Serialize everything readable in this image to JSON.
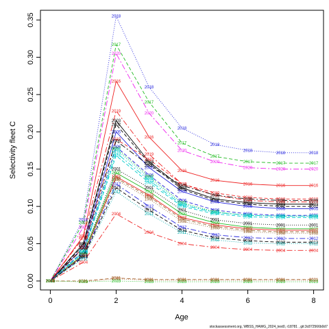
{
  "chart_data": {
    "type": "line",
    "xlabel": "Age",
    "ylabel": "Selectivity fleet C",
    "x": [
      0,
      1,
      2,
      3,
      4,
      5,
      6,
      7,
      8
    ],
    "xlim": [
      -0.3,
      8.3
    ],
    "ylim": [
      -0.012,
      0.363
    ],
    "xticks": [
      0,
      2,
      4,
      6,
      8
    ],
    "yticks": [
      0.0,
      0.05,
      0.1,
      0.15,
      0.2,
      0.25,
      0.3,
      0.35
    ],
    "ytick_labels": [
      "0.00",
      "0.05",
      "0.10",
      "0.15",
      "0.20",
      "0.25",
      "0.30",
      "0.35"
    ],
    "grid": false,
    "legend": "none",
    "series": [
      {
        "name": "2018",
        "color": "#2222dd",
        "dash": "1,2",
        "values": [
          0,
          0.082,
          0.355,
          0.26,
          0.205,
          0.183,
          0.175,
          0.172,
          0.172
        ]
      },
      {
        "name": "2017",
        "color": "#22bb22",
        "dash": "5,3",
        "values": [
          0,
          0.078,
          0.317,
          0.24,
          0.185,
          0.167,
          0.16,
          0.158,
          0.158
        ]
      },
      {
        "name": "2020",
        "color": "#ee22ee",
        "dash": "8,3,2,3",
        "values": [
          0,
          0.072,
          0.305,
          0.225,
          0.175,
          0.16,
          0.152,
          0.15,
          0.15
        ]
      },
      {
        "name": "2016",
        "color": "#ee2222",
        "dash": "",
        "values": [
          0,
          0.06,
          0.268,
          0.193,
          0.148,
          0.135,
          0.13,
          0.128,
          0.128
        ]
      },
      {
        "name": "2019",
        "color": "#ee2222",
        "dash": "8,3,2,3",
        "values": [
          0,
          0.058,
          0.228,
          0.17,
          0.13,
          0.115,
          0.108,
          0.106,
          0.106
        ]
      },
      {
        "name": "2003",
        "color": "#000000",
        "dash": "",
        "values": [
          0,
          0.05,
          0.215,
          0.16,
          0.125,
          0.11,
          0.105,
          0.103,
          0.103
        ]
      },
      {
        "name": "2002",
        "color": "#000000",
        "dash": "5,3",
        "values": [
          0,
          0.048,
          0.21,
          0.158,
          0.123,
          0.108,
          0.103,
          0.1,
          0.1
        ]
      },
      {
        "name": "2005",
        "color": "#2222dd",
        "dash": "",
        "values": [
          0,
          0.045,
          0.2,
          0.152,
          0.12,
          0.106,
          0.1,
          0.097,
          0.097
        ]
      },
      {
        "name": "2010",
        "color": "#ee2222",
        "dash": "5,3",
        "values": [
          0,
          0.045,
          0.19,
          0.163,
          0.13,
          0.118,
          0.112,
          0.11,
          0.11
        ]
      },
      {
        "name": "2009",
        "color": "#000000",
        "dash": "8,3,2,3",
        "values": [
          0,
          0.044,
          0.188,
          0.155,
          0.128,
          0.115,
          0.11,
          0.108,
          0.108
        ]
      },
      {
        "name": "2006",
        "color": "#2222dd",
        "dash": "5,3",
        "values": [
          0,
          0.04,
          0.18,
          0.142,
          0.108,
          0.095,
          0.09,
          0.088,
          0.088
        ]
      },
      {
        "name": "2007",
        "color": "#22bb22",
        "dash": "1,2",
        "values": [
          0,
          0.04,
          0.178,
          0.14,
          0.105,
          0.093,
          0.088,
          0.087,
          0.087
        ]
      },
      {
        "name": "2008",
        "color": "#00cccc",
        "dash": "1,2",
        "values": [
          0,
          0.04,
          0.176,
          0.138,
          0.104,
          0.092,
          0.088,
          0.087,
          0.087
        ]
      },
      {
        "name": "2015",
        "color": "#00cccc",
        "dash": "8,3,2,3",
        "values": [
          0,
          0.038,
          0.172,
          0.135,
          0.102,
          0.092,
          0.088,
          0.087,
          0.087
        ]
      },
      {
        "name": "2014",
        "color": "#00cccc",
        "dash": "5,3",
        "values": [
          0,
          0.038,
          0.168,
          0.132,
          0.1,
          0.09,
          0.086,
          0.085,
          0.085
        ]
      },
      {
        "name": "2001",
        "color": "#000000",
        "dash": "1,2",
        "values": [
          0,
          0.036,
          0.15,
          0.125,
          0.095,
          0.082,
          0.077,
          0.075,
          0.075
        ]
      },
      {
        "name": "2000",
        "color": "#22bb22",
        "dash": "",
        "values": [
          0,
          0.035,
          0.145,
          0.12,
          0.09,
          0.078,
          0.072,
          0.07,
          0.07
        ]
      },
      {
        "name": "1997",
        "color": "#ee2222",
        "dash": "",
        "values": [
          0,
          0.034,
          0.14,
          0.115,
          0.085,
          0.075,
          0.07,
          0.068,
          0.068
        ]
      },
      {
        "name": "1999",
        "color": "#996633",
        "dash": "5,3",
        "values": [
          0,
          0.034,
          0.138,
          0.113,
          0.083,
          0.073,
          0.068,
          0.066,
          0.066
        ]
      },
      {
        "name": "1998",
        "color": "#996633",
        "dash": "1,2",
        "values": [
          0,
          0.033,
          0.136,
          0.11,
          0.08,
          0.071,
          0.066,
          0.064,
          0.064
        ]
      },
      {
        "name": "2012",
        "color": "#2222dd",
        "dash": "8,3,2,3",
        "values": [
          0,
          0.033,
          0.13,
          0.1,
          0.072,
          0.062,
          0.058,
          0.057,
          0.057
        ]
      },
      {
        "name": "2013",
        "color": "#000000",
        "dash": "5,3",
        "values": [
          0,
          0.032,
          0.125,
          0.095,
          0.068,
          0.058,
          0.054,
          0.052,
          0.052
        ]
      },
      {
        "name": "2011",
        "color": "#00aaaa",
        "dash": "1,2",
        "values": [
          0,
          0.03,
          0.12,
          0.09,
          0.065,
          0.055,
          0.051,
          0.05,
          0.05
        ]
      },
      {
        "name": "2004",
        "color": "#ee2222",
        "dash": "8,3,2,3",
        "values": [
          0,
          0.025,
          0.09,
          0.065,
          0.05,
          0.045,
          0.042,
          0.041,
          0.041
        ]
      },
      {
        "name": "2021",
        "color": "#aa6633",
        "dash": "5,3",
        "values": [
          0,
          0.0,
          0.004,
          0.002,
          0.002,
          0.002,
          0.002,
          0.002,
          0.002
        ]
      },
      {
        "name": "2022",
        "color": "#aa6633",
        "dash": "1,2",
        "values": [
          0,
          -0.001,
          0.003,
          0.001,
          0.001,
          0.001,
          0.001,
          0.001,
          0.001
        ]
      },
      {
        "name": "2023",
        "color": "#22bb22",
        "dash": "1,2",
        "values": [
          0,
          -0.001,
          0.0,
          -0.001,
          -0.001,
          -0.001,
          -0.001,
          -0.001,
          -0.001
        ]
      }
    ]
  },
  "footer": "stockassessment.org, WBSS_HAWG_2024_test0, r18781 , git:3c872566b0d7"
}
